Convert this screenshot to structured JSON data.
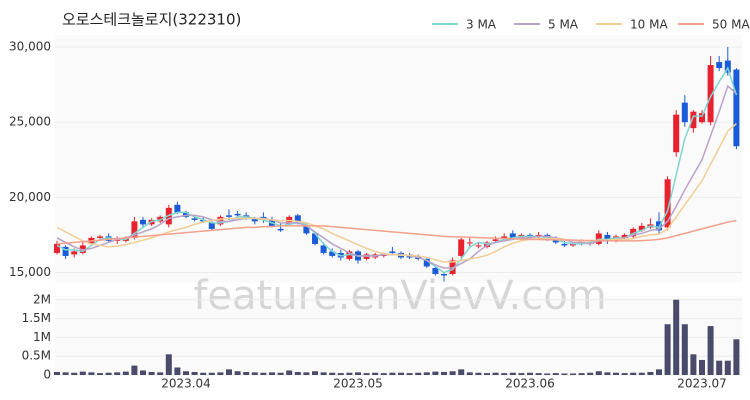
{
  "watermark": "feature.enVievV.com",
  "chart_data": [
    {
      "type": "candlestick",
      "title": "오로스테크놀로지(322310)",
      "ylim": [
        14300,
        30800
      ],
      "yticks": [
        {
          "value": 15000,
          "label": "15,000"
        },
        {
          "value": 20000,
          "label": "20,000"
        },
        {
          "value": 25000,
          "label": "25,000"
        },
        {
          "value": 30000,
          "label": "30,000"
        }
      ],
      "up_color": "#e8212f",
      "down_color": "#1a5bd8",
      "grid": true,
      "open": [
        16300,
        16700,
        16200,
        16300,
        16900,
        17300,
        17400,
        17100,
        17100,
        17300,
        18500,
        18200,
        18400,
        18200,
        19500,
        19000,
        18600,
        18500,
        18300,
        18200,
        18800,
        18900,
        18800,
        18600,
        18700,
        18500,
        17900,
        18200,
        18800,
        18100,
        17600,
        16800,
        16400,
        16300,
        15900,
        16400,
        15900,
        16000,
        16100,
        16400,
        16300,
        16200,
        16100,
        15900,
        15300,
        14900,
        14900,
        16100,
        17000,
        16800,
        16700,
        17100,
        17300,
        17600,
        17200,
        17500,
        17400,
        17500,
        17200,
        16900,
        16800,
        16900,
        16900,
        16900,
        17500,
        17100,
        17300,
        17400,
        17800,
        18000,
        18400,
        18000,
        23000,
        26300,
        24600,
        25000,
        25000,
        29000,
        29100,
        28500
      ],
      "high": [
        17100,
        16800,
        16600,
        17000,
        17400,
        17500,
        17600,
        17400,
        17400,
        18700,
        18700,
        18600,
        18800,
        19500,
        19700,
        19100,
        18700,
        18700,
        18400,
        18800,
        19200,
        19100,
        19000,
        18700,
        19000,
        18700,
        18300,
        18800,
        18900,
        18200,
        17700,
        17000,
        16600,
        16500,
        16500,
        16500,
        16300,
        16300,
        16300,
        16700,
        16400,
        16300,
        16200,
        16000,
        15500,
        15000,
        16000,
        17300,
        17300,
        17000,
        17100,
        17400,
        17600,
        17800,
        17600,
        17600,
        17700,
        17600,
        17400,
        17100,
        17000,
        17200,
        17100,
        17800,
        17700,
        17500,
        17600,
        18000,
        18300,
        18600,
        19000,
        21400,
        25800,
        26800,
        25800,
        25800,
        29400,
        29400,
        30000,
        28600
      ],
      "low": [
        16200,
        15900,
        16000,
        16200,
        16800,
        17100,
        17000,
        16900,
        17000,
        17200,
        18000,
        18100,
        18300,
        18000,
        18900,
        18600,
        18400,
        18300,
        17800,
        18100,
        18500,
        18700,
        18500,
        18200,
        18300,
        18000,
        17700,
        18100,
        18200,
        17500,
        16800,
        16200,
        16000,
        15800,
        15800,
        15600,
        15800,
        15900,
        16000,
        16200,
        15900,
        15900,
        15800,
        15300,
        14800,
        14400,
        14800,
        16000,
        16700,
        16600,
        16600,
        17000,
        17100,
        17200,
        17100,
        17200,
        17300,
        17100,
        16900,
        16700,
        16700,
        16800,
        16800,
        16800,
        16900,
        17000,
        17200,
        17300,
        17700,
        17900,
        17500,
        17800,
        22700,
        24700,
        24300,
        24900,
        24800,
        28400,
        28100,
        23200
      ],
      "close": [
        16900,
        16100,
        16400,
        16800,
        17300,
        17400,
        17100,
        17200,
        17300,
        18400,
        18200,
        18500,
        18700,
        19300,
        19000,
        18700,
        18500,
        18400,
        17900,
        18700,
        18700,
        18800,
        18600,
        18400,
        18500,
        18100,
        17800,
        18700,
        18400,
        17600,
        16900,
        16300,
        16100,
        16000,
        16400,
        15800,
        16200,
        16200,
        16200,
        16300,
        16000,
        16000,
        15900,
        15400,
        14900,
        14800,
        15800,
        17200,
        17000,
        16800,
        17000,
        17200,
        17400,
        17300,
        17500,
        17300,
        17500,
        17200,
        17000,
        16800,
        16900,
        17000,
        17000,
        17600,
        17100,
        17400,
        17500,
        17900,
        18100,
        18200,
        17800,
        21200,
        25500,
        25000,
        25700,
        25600,
        28800,
        28600,
        28300,
        23400
      ],
      "legend": "top-right",
      "series": [
        {
          "name": "3 MA",
          "color": "#7fd6d1",
          "values": [
            16800,
            16500,
            16500,
            16400,
            16800,
            17200,
            17300,
            17200,
            17200,
            17600,
            18000,
            18400,
            18500,
            18800,
            19000,
            19000,
            18700,
            18500,
            18300,
            18300,
            18400,
            18700,
            18700,
            18600,
            18500,
            18300,
            18100,
            18200,
            18300,
            18200,
            17600,
            16900,
            16400,
            16100,
            16200,
            16100,
            16100,
            16100,
            16200,
            16200,
            16200,
            16100,
            16000,
            15800,
            15400,
            15000,
            15200,
            15900,
            16700,
            17000,
            16900,
            17000,
            17200,
            17300,
            17400,
            17400,
            17400,
            17300,
            17200,
            17000,
            16900,
            16900,
            17000,
            17200,
            17200,
            17300,
            17300,
            17600,
            17800,
            18100,
            18000,
            19100,
            21500,
            23900,
            25400,
            25400,
            26700,
            27700,
            28600,
            26800
          ]
        },
        {
          "name": "5 MA",
          "color": "#b9a3c8",
          "values": [
            17300,
            17000,
            16700,
            16500,
            16600,
            16800,
            17000,
            17200,
            17300,
            17500,
            17700,
            17900,
            18200,
            18600,
            18700,
            18800,
            18800,
            18700,
            18500,
            18400,
            18400,
            18500,
            18600,
            18600,
            18600,
            18500,
            18300,
            18300,
            18300,
            18100,
            17700,
            17300,
            16900,
            16600,
            16300,
            16100,
            16100,
            16100,
            16200,
            16200,
            16200,
            16100,
            16000,
            15800,
            15500,
            15300,
            15300,
            15600,
            15900,
            16400,
            16800,
            17000,
            17100,
            17200,
            17300,
            17300,
            17400,
            17400,
            17300,
            17200,
            17000,
            17000,
            16900,
            17100,
            17100,
            17200,
            17300,
            17500,
            17600,
            17800,
            17900,
            18400,
            19400,
            20500,
            21500,
            22500,
            24100,
            25700,
            27400,
            26900
          ]
        },
        {
          "name": "10 MA",
          "color": "#f2cd94",
          "values": [
            18000,
            17700,
            17400,
            17100,
            16900,
            16800,
            16700,
            16750,
            16850,
            17000,
            17150,
            17300,
            17500,
            17700,
            17850,
            18000,
            18200,
            18350,
            18450,
            18550,
            18600,
            18600,
            18600,
            18600,
            18550,
            18500,
            18450,
            18450,
            18400,
            18300,
            18100,
            17900,
            17600,
            17350,
            17100,
            16850,
            16600,
            16400,
            16250,
            16200,
            16150,
            16150,
            16100,
            16000,
            15850,
            15700,
            15700,
            15800,
            15900,
            16000,
            16150,
            16400,
            16700,
            16950,
            17100,
            17200,
            17250,
            17250,
            17250,
            17200,
            17150,
            17100,
            17100,
            17150,
            17150,
            17200,
            17200,
            17250,
            17400,
            17500,
            17550,
            17900,
            18700,
            19500,
            20300,
            21100,
            22200,
            23300,
            24400,
            24900
          ]
        },
        {
          "name": "50 MA",
          "color": "#f4a08c",
          "values": [
            16900,
            16950,
            17000,
            17050,
            17100,
            17150,
            17200,
            17250,
            17300,
            17350,
            17400,
            17450,
            17500,
            17550,
            17600,
            17650,
            17700,
            17750,
            17800,
            17850,
            17900,
            17950,
            18000,
            18000,
            18050,
            18050,
            18100,
            18100,
            18100,
            18100,
            18100,
            18100,
            18050,
            18000,
            17950,
            17900,
            17850,
            17800,
            17750,
            17700,
            17650,
            17600,
            17550,
            17500,
            17450,
            17400,
            17380,
            17360,
            17340,
            17320,
            17300,
            17280,
            17260,
            17240,
            17220,
            17200,
            17190,
            17180,
            17170,
            17160,
            17150,
            17140,
            17130,
            17120,
            17110,
            17100,
            17100,
            17100,
            17120,
            17150,
            17200,
            17300,
            17450,
            17600,
            17750,
            17900,
            18050,
            18200,
            18350,
            18450
          ]
        }
      ]
    },
    {
      "type": "bar",
      "color": "#4a4a6a",
      "ylim": [
        0,
        2100000
      ],
      "yticks": [
        0,
        {
          "value": 500000,
          "label": "0.5M"
        },
        {
          "value": 1000000,
          "label": "1M"
        },
        {
          "value": 1500000,
          "label": "1.5M"
        },
        {
          "value": 2000000,
          "label": "2M"
        }
      ],
      "categories": [
        null,
        null,
        null,
        null,
        null,
        null,
        null,
        null,
        null,
        null,
        null,
        null,
        null,
        null,
        null,
        "2023.04",
        null,
        null,
        null,
        null,
        null,
        null,
        null,
        null,
        null,
        null,
        null,
        null,
        null,
        null,
        null,
        null,
        null,
        null,
        null,
        "2023.05",
        null,
        null,
        null,
        null,
        null,
        null,
        null,
        null,
        null,
        null,
        null,
        null,
        null,
        null,
        null,
        null,
        null,
        null,
        null,
        "2023.06",
        null,
        null,
        null,
        null,
        null,
        null,
        null,
        null,
        null,
        null,
        null,
        null,
        null,
        null,
        null,
        null,
        null,
        null,
        null,
        "2023.07",
        null,
        null,
        null,
        null
      ],
      "values": [
        80000,
        70000,
        60000,
        90000,
        70000,
        50000,
        60000,
        70000,
        90000,
        250000,
        120000,
        80000,
        70000,
        550000,
        200000,
        100000,
        80000,
        60000,
        60000,
        70000,
        150000,
        100000,
        80000,
        70000,
        60000,
        70000,
        60000,
        120000,
        80000,
        70000,
        100000,
        70000,
        60000,
        50000,
        60000,
        70000,
        50000,
        60000,
        50000,
        60000,
        60000,
        50000,
        60000,
        70000,
        90000,
        80000,
        100000,
        150000,
        70000,
        60000,
        50000,
        60000,
        50000,
        60000,
        50000,
        60000,
        50000,
        40000,
        50000,
        40000,
        40000,
        50000,
        60000,
        100000,
        70000,
        60000,
        50000,
        60000,
        60000,
        80000,
        150000,
        1350000,
        2000000,
        1350000,
        550000,
        400000,
        1300000,
        380000,
        380000,
        950000
      ]
    }
  ]
}
